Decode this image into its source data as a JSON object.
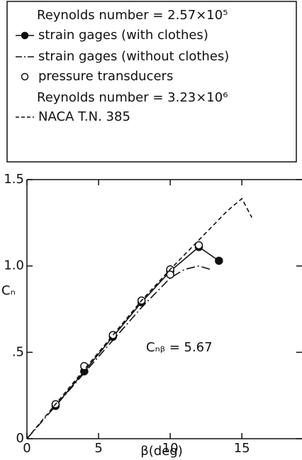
{
  "chart_data": {
    "type": "line",
    "legend_notes": [
      "Reynolds number = 2.57×10⁵",
      "Reynolds number = 3.23×10⁶"
    ],
    "annotation": "Cₙᵦ = 5.67",
    "xlabel": "β(deg)",
    "ylabel": "Cₙ",
    "xlim": [
      0,
      19
    ],
    "ylim": [
      0,
      1.5
    ],
    "xticks": [
      0,
      5,
      10,
      15
    ],
    "yticks": [
      0,
      {
        "value": 0.5,
        "label": ".5"
      },
      {
        "value": 1.0,
        "label": "1.0"
      },
      1.5
    ],
    "series": [
      {
        "name": "strain gages (with clothes)",
        "color": "#111",
        "line": "solid",
        "marker": "filled",
        "x": [
          2,
          4,
          6,
          8,
          10,
          12,
          13.4
        ],
        "values": [
          0.19,
          0.39,
          0.59,
          0.79,
          0.97,
          1.11,
          1.03
        ]
      },
      {
        "name": "strain gages (without clothes)",
        "color": "#111",
        "line": "dashdot",
        "marker": null,
        "x": [
          0,
          2,
          4,
          6,
          8,
          10,
          11,
          12,
          12.8
        ],
        "values": [
          0,
          0.19,
          0.38,
          0.57,
          0.76,
          0.93,
          0.98,
          1.0,
          0.98
        ]
      },
      {
        "name": "pressure transducers",
        "color": "#111",
        "line": "none",
        "marker": "open",
        "x": [
          2,
          4,
          6,
          8,
          10,
          10,
          12
        ],
        "values": [
          0.2,
          0.42,
          0.6,
          0.8,
          0.98,
          0.95,
          1.12
        ]
      },
      {
        "name": "NACA  T.N. 385",
        "color": "#111",
        "line": "dashed",
        "marker": null,
        "x": [
          0,
          2,
          4,
          6,
          8,
          10,
          12,
          14,
          15,
          15.7
        ],
        "values": [
          0,
          0.2,
          0.4,
          0.6,
          0.8,
          0.98,
          1.15,
          1.32,
          1.39,
          1.28
        ]
      }
    ]
  }
}
